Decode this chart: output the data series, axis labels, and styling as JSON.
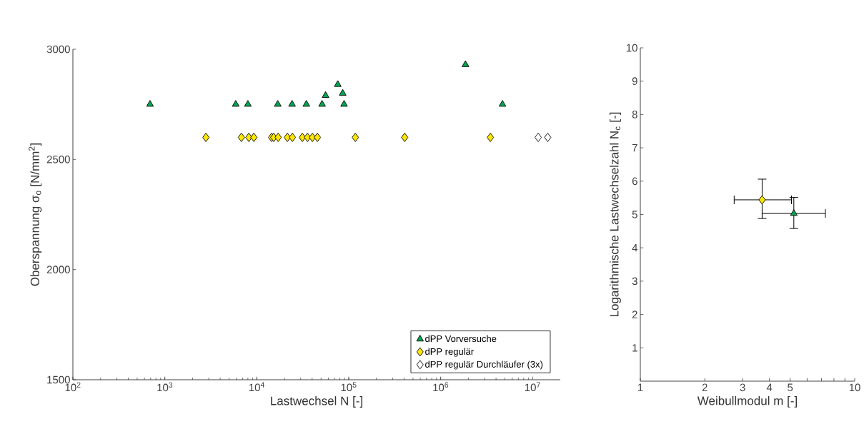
{
  "chart_data": [
    {
      "type": "scatter",
      "xlabel": "Lastwechsel N [-]",
      "ylabel": "Oberspannung σ$_{o}$ [N/mm$^{2}$]",
      "log": "x",
      "grid": false,
      "legend": "bottom right",
      "xlim": [
        100,
        20000000
      ],
      "ylim": [
        1500,
        3000
      ],
      "xticks": [
        {
          "value": 100,
          "label": "10$^{2}$"
        },
        {
          "value": 1000,
          "label": "10$^{3}$"
        },
        {
          "value": 10000,
          "label": "10$^{4}$"
        },
        {
          "value": 100000,
          "label": "10$^{5}$"
        },
        {
          "value": 1000000,
          "label": "10$^{6}$"
        },
        {
          "value": 10000000,
          "label": "10$^{7}$"
        }
      ],
      "yticks": [
        1500,
        2000,
        2500,
        3000
      ],
      "series": [
        {
          "name": "dPP Vorversuche",
          "color": "#00a651",
          "marker": "triangle",
          "x": [
            690,
            5900,
            8000,
            16900,
            24200,
            34600,
            51300,
            56000,
            76000,
            86000,
            89000,
            1860000,
            4700000
          ],
          "values": [
            2750,
            2750,
            2750,
            2750,
            2750,
            2750,
            2750,
            2790,
            2840,
            2800,
            2750,
            2930,
            2750
          ]
        },
        {
          "name": "dPP regulär",
          "color": "#ffe600",
          "marker": "diamond",
          "x": [
            2800,
            6800,
            8200,
            9300,
            14500,
            15300,
            17100,
            20800,
            21500,
            24400,
            31300,
            35600,
            40300,
            45600,
            118000,
            406000,
            3470000
          ],
          "values": [
            2600,
            2600,
            2600,
            2600,
            2600,
            2600,
            2600,
            null,
            2600,
            2600,
            2600,
            2600,
            2600,
            2600,
            2600,
            2600,
            2600
          ]
        },
        {
          "name": "dPP regulär Durchläufer (3x)",
          "color": "#ffffff",
          "marker": "diamond",
          "x": [
            11500000,
            14600000
          ],
          "values": [
            2600,
            2600
          ]
        }
      ]
    },
    {
      "type": "scatter",
      "xlabel": "Weibullmodul m [-]",
      "ylabel": "Logarithmische Lastwechselzahl N$_{c}$ [-]",
      "log": "x",
      "grid": false,
      "legend": false,
      "xlim": [
        1,
        10
      ],
      "ylim": [
        0,
        10
      ],
      "xticks": [
        1,
        2,
        3,
        4,
        5,
        {
          "value": 6,
          "label": null
        },
        {
          "value": 7,
          "label": null
        },
        {
          "value": 8,
          "label": null
        },
        {
          "value": 9,
          "label": null
        },
        10
      ],
      "yticks": [
        1,
        2,
        3,
        4,
        5,
        6,
        7,
        8,
        9,
        10
      ],
      "series": [
        {
          "color": "#ffe600",
          "marker": "diamond",
          "x": [
            3.7
          ],
          "values": [
            5.44
          ],
          "errors": [
            [
              4.88,
              6.06
            ]
          ],
          "xerrors": [
            [
              2.74,
              5.07
            ]
          ]
        },
        {
          "color": "#00a651",
          "marker": "triangle",
          "x": [
            5.2
          ],
          "values": [
            5.03
          ],
          "errors": [
            [
              4.58,
              5.51
            ]
          ],
          "xerrors": [
            [
              3.7,
              7.3
            ]
          ]
        }
      ]
    }
  ]
}
